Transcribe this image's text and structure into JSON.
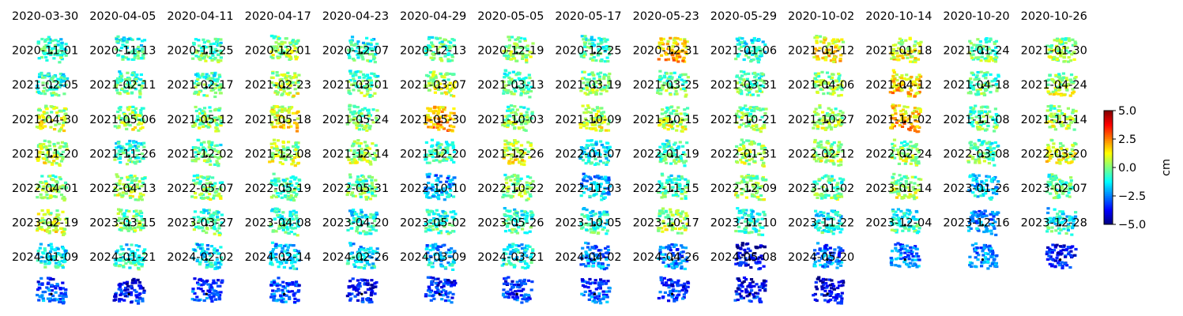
{
  "chart_data": {
    "type": "heatmap",
    "title": "",
    "layout": "small-multiples grid, 14 columns x 8 rows",
    "panels": [
      {
        "date": "2020-03-30",
        "mean_cm": -0.8
      },
      {
        "date": "2020-04-05",
        "mean_cm": -0.8
      },
      {
        "date": "2020-04-11",
        "mean_cm": -0.5
      },
      {
        "date": "2020-04-17",
        "mean_cm": 0.3
      },
      {
        "date": "2020-04-23",
        "mean_cm": -0.8
      },
      {
        "date": "2020-04-29",
        "mean_cm": -0.3
      },
      {
        "date": "2020-05-05",
        "mean_cm": 0.0
      },
      {
        "date": "2020-05-17",
        "mean_cm": -0.5
      },
      {
        "date": "2020-05-23",
        "mean_cm": 1.8
      },
      {
        "date": "2020-05-29",
        "mean_cm": -1.0
      },
      {
        "date": "2020-10-02",
        "mean_cm": 1.2
      },
      {
        "date": "2020-10-14",
        "mean_cm": 0.8
      },
      {
        "date": "2020-10-20",
        "mean_cm": -0.3
      },
      {
        "date": "2020-10-26",
        "mean_cm": 0.3
      },
      {
        "date": "2020-11-01",
        "mean_cm": -0.8
      },
      {
        "date": "2020-11-13",
        "mean_cm": -0.5
      },
      {
        "date": "2020-11-25",
        "mean_cm": -0.5
      },
      {
        "date": "2020-12-01",
        "mean_cm": 0.5
      },
      {
        "date": "2020-12-07",
        "mean_cm": -0.3
      },
      {
        "date": "2020-12-13",
        "mean_cm": 0.5
      },
      {
        "date": "2020-12-19",
        "mean_cm": -0.3
      },
      {
        "date": "2020-12-25",
        "mean_cm": 0.0
      },
      {
        "date": "2020-12-31",
        "mean_cm": -0.3
      },
      {
        "date": "2021-01-06",
        "mean_cm": -0.5
      },
      {
        "date": "2021-01-12",
        "mean_cm": 0.3
      },
      {
        "date": "2021-01-18",
        "mean_cm": 1.5
      },
      {
        "date": "2021-01-24",
        "mean_cm": -0.3
      },
      {
        "date": "2021-01-30",
        "mean_cm": 0.3
      },
      {
        "date": "2021-02-05",
        "mean_cm": 0.8
      },
      {
        "date": "2021-02-11",
        "mean_cm": 0.3
      },
      {
        "date": "2021-02-17",
        "mean_cm": 0.0
      },
      {
        "date": "2021-02-23",
        "mean_cm": 1.2
      },
      {
        "date": "2021-03-01",
        "mean_cm": 0.0
      },
      {
        "date": "2021-03-07",
        "mean_cm": 1.8
      },
      {
        "date": "2021-03-13",
        "mean_cm": 0.0
      },
      {
        "date": "2021-03-19",
        "mean_cm": 0.5
      },
      {
        "date": "2021-03-25",
        "mean_cm": 0.3
      },
      {
        "date": "2021-03-31",
        "mean_cm": 0.0
      },
      {
        "date": "2021-04-06",
        "mean_cm": 0.3
      },
      {
        "date": "2021-04-12",
        "mean_cm": 1.8
      },
      {
        "date": "2021-04-18",
        "mean_cm": -0.3
      },
      {
        "date": "2021-04-24",
        "mean_cm": 0.3
      },
      {
        "date": "2021-04-30",
        "mean_cm": 0.5
      },
      {
        "date": "2021-05-06",
        "mean_cm": -0.8
      },
      {
        "date": "2021-05-12",
        "mean_cm": -0.3
      },
      {
        "date": "2021-05-18",
        "mean_cm": 0.5
      },
      {
        "date": "2021-05-24",
        "mean_cm": 0.3
      },
      {
        "date": "2021-05-30",
        "mean_cm": -0.5
      },
      {
        "date": "2021-10-03",
        "mean_cm": 0.8
      },
      {
        "date": "2021-10-09",
        "mean_cm": -1.5
      },
      {
        "date": "2021-10-15",
        "mean_cm": -0.5
      },
      {
        "date": "2021-10-21",
        "mean_cm": 0.3
      },
      {
        "date": "2021-10-27",
        "mean_cm": 0.3
      },
      {
        "date": "2021-11-02",
        "mean_cm": 0.3
      },
      {
        "date": "2021-11-08",
        "mean_cm": -0.3
      },
      {
        "date": "2021-11-14",
        "mean_cm": 0.8
      },
      {
        "date": "2021-11-20",
        "mean_cm": 0.3
      },
      {
        "date": "2021-11-26",
        "mean_cm": 0.3
      },
      {
        "date": "2021-12-02",
        "mean_cm": 0.0
      },
      {
        "date": "2021-12-08",
        "mean_cm": -0.5
      },
      {
        "date": "2021-12-14",
        "mean_cm": -0.3
      },
      {
        "date": "2021-12-20",
        "mean_cm": -2.0
      },
      {
        "date": "2021-12-26",
        "mean_cm": 0.0
      },
      {
        "date": "2022-01-07",
        "mean_cm": -2.0
      },
      {
        "date": "2022-01-19",
        "mean_cm": -0.5
      },
      {
        "date": "2022-01-31",
        "mean_cm": 0.3
      },
      {
        "date": "2022-02-12",
        "mean_cm": -0.3
      },
      {
        "date": "2022-02-24",
        "mean_cm": 0.3
      },
      {
        "date": "2022-03-08",
        "mean_cm": -1.8
      },
      {
        "date": "2022-03-20",
        "mean_cm": -0.3
      },
      {
        "date": "2022-04-01",
        "mean_cm": 0.8
      },
      {
        "date": "2022-04-13",
        "mean_cm": 0.0
      },
      {
        "date": "2022-05-07",
        "mean_cm": -0.5
      },
      {
        "date": "2022-05-19",
        "mean_cm": -0.8
      },
      {
        "date": "2022-05-31",
        "mean_cm": -1.0
      },
      {
        "date": "2022-10-10",
        "mean_cm": -0.8
      },
      {
        "date": "2022-10-22",
        "mean_cm": -0.8
      },
      {
        "date": "2022-11-03",
        "mean_cm": -1.0
      },
      {
        "date": "2022-11-15",
        "mean_cm": 0.3
      },
      {
        "date": "2022-12-09",
        "mean_cm": -1.0
      },
      {
        "date": "2023-01-02",
        "mean_cm": -1.2
      },
      {
        "date": "2023-01-14",
        "mean_cm": -0.8
      },
      {
        "date": "2023-01-26",
        "mean_cm": -2.3
      },
      {
        "date": "2023-02-07",
        "mean_cm": -1.2
      },
      {
        "date": "2023-02-19",
        "mean_cm": -1.2
      },
      {
        "date": "2023-03-15",
        "mean_cm": -1.0
      },
      {
        "date": "2023-03-27",
        "mean_cm": -1.5
      },
      {
        "date": "2023-04-08",
        "mean_cm": -1.8
      },
      {
        "date": "2023-04-20",
        "mean_cm": -1.5
      },
      {
        "date": "2023-05-02",
        "mean_cm": -1.8
      },
      {
        "date": "2023-05-26",
        "mean_cm": -1.2
      },
      {
        "date": "2023-10-05",
        "mean_cm": -2.5
      },
      {
        "date": "2023-10-17",
        "mean_cm": -2.5
      },
      {
        "date": "2023-11-10",
        "mean_cm": -4.0
      },
      {
        "date": "2023-11-22",
        "mean_cm": -2.5
      },
      {
        "date": "2023-12-04",
        "mean_cm": -2.5
      },
      {
        "date": "2023-12-16",
        "mean_cm": -2.3
      },
      {
        "date": "2023-12-28",
        "mean_cm": -3.5
      },
      {
        "date": "2024-01-09",
        "mean_cm": -3.0
      },
      {
        "date": "2024-01-21",
        "mean_cm": -3.8
      },
      {
        "date": "2024-02-02",
        "mean_cm": -3.0
      },
      {
        "date": "2024-02-14",
        "mean_cm": -3.0
      },
      {
        "date": "2024-02-26",
        "mean_cm": -3.8
      },
      {
        "date": "2024-03-09",
        "mean_cm": -3.3
      },
      {
        "date": "2024-03-21",
        "mean_cm": -3.3
      },
      {
        "date": "2024-04-02",
        "mean_cm": -3.0
      },
      {
        "date": "2024-04-26",
        "mean_cm": -3.3
      },
      {
        "date": "2024-05-08",
        "mean_cm": -3.8
      },
      {
        "date": "2024-05-20",
        "mean_cm": -4.0
      }
    ],
    "colorbar": {
      "label": "cm",
      "vmin": -5.0,
      "vmax": 5.0,
      "colormap": "jet",
      "ticks": [
        "5.0",
        "2.5",
        "0.0",
        "−2.5",
        "−5.0"
      ],
      "tick_values": [
        5.0,
        2.5,
        0.0,
        -2.5,
        -5.0
      ]
    },
    "reference_marker": "black dot"
  }
}
